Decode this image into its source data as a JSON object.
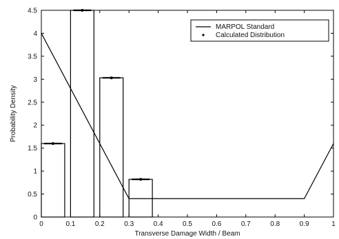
{
  "chart_data": {
    "type": "bar",
    "xlabel": "Transverse Damage Width / Beam",
    "ylabel": "Probability Density",
    "xlim": [
      0,
      1
    ],
    "ylim": [
      0,
      4.5
    ],
    "x_ticks": [
      "0",
      "0.1",
      "0.2",
      "0.3",
      "0.4",
      "0.5",
      "0.6",
      "0.7",
      "0.8",
      "0.9",
      "1"
    ],
    "y_ticks": [
      "0",
      "0.5",
      "1",
      "1.5",
      "2",
      "2.5",
      "3",
      "3.5",
      "4",
      "4.5"
    ],
    "legend_position": "top-right",
    "series": [
      {
        "name": "MARPOL Standard",
        "kind": "line",
        "x": [
          0,
          0.3,
          0.9,
          1
        ],
        "y": [
          4,
          0.4,
          0.4,
          1.6
        ]
      },
      {
        "name": "Calculated Distribution",
        "kind": "bar",
        "bins": [
          [
            0,
            0.08
          ],
          [
            0.1,
            0.18
          ],
          [
            0.2,
            0.28
          ],
          [
            0.3,
            0.38
          ]
        ],
        "values": [
          1.6,
          4.5,
          3.03,
          0.82
        ]
      }
    ]
  }
}
